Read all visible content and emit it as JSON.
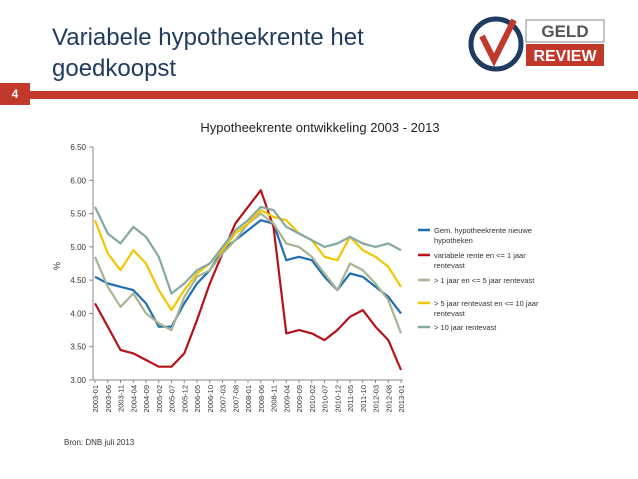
{
  "slide": {
    "title": "Variabele hypotheekrente het goedkoopst",
    "number": "4",
    "source": "Bron: DNB juli 2013"
  },
  "logo": {
    "text_top": "GELD",
    "text_bottom": "REVIEW"
  },
  "colors": {
    "accent": "#c0392b",
    "title": "#1f3b5f"
  },
  "chart_data": {
    "type": "line",
    "title": "Hypotheekrente ontwikkeling 2003 - 2013",
    "ylabel": "%",
    "ylim": [
      3.0,
      6.5
    ],
    "yticks": [
      "3.00",
      "3.50",
      "4.00",
      "4.50",
      "5.00",
      "5.50",
      "6.00",
      "6.50"
    ],
    "grid": false,
    "legend_position": "right",
    "x": [
      "2003-01",
      "2003-06",
      "2003-11",
      "2004-04",
      "2004-09",
      "2005-02",
      "2005-07",
      "2005-12",
      "2006-05",
      "2006-10",
      "2007-03",
      "2007-08",
      "2008-01",
      "2008-06",
      "2008-11",
      "2009-04",
      "2009-09",
      "2010-02",
      "2010-07",
      "2010-12",
      "2011-05",
      "2011-10",
      "2012-03",
      "2012-08",
      "2013-01"
    ],
    "series": [
      {
        "name": "Gem. hypotheekrente nieuwe hypotheken",
        "color": "#1f6fb2",
        "values": [
          4.55,
          4.45,
          4.4,
          4.35,
          4.15,
          3.8,
          3.8,
          4.15,
          4.45,
          4.65,
          4.95,
          5.1,
          5.25,
          5.4,
          5.35,
          4.8,
          4.85,
          4.8,
          4.55,
          4.35,
          4.6,
          4.55,
          4.4,
          4.25,
          4.0
        ]
      },
      {
        "name": "variabele rente en <= 1 jaar rentevast",
        "color": "#b5121b",
        "values": [
          4.15,
          3.8,
          3.45,
          3.4,
          3.3,
          3.2,
          3.2,
          3.4,
          3.9,
          4.45,
          4.9,
          5.35,
          5.6,
          5.85,
          5.3,
          3.7,
          3.75,
          3.7,
          3.6,
          3.75,
          3.95,
          4.05,
          3.8,
          3.6,
          3.15
        ]
      },
      {
        "name": "> 1 jaar en <= 5 jaar rentevast",
        "color": "#a5b592",
        "values": [
          4.85,
          4.4,
          4.1,
          4.3,
          4.0,
          3.85,
          3.75,
          4.25,
          4.55,
          4.65,
          4.9,
          5.1,
          5.35,
          5.5,
          5.35,
          5.05,
          5.0,
          4.85,
          4.6,
          4.35,
          4.75,
          4.65,
          4.45,
          4.2,
          3.7
        ]
      },
      {
        "name": "> 5 jaar rentevast en <= 10 jaar rentevast",
        "color": "#f2c500",
        "values": [
          5.4,
          4.9,
          4.65,
          4.95,
          4.75,
          4.35,
          4.05,
          4.35,
          4.6,
          4.75,
          4.95,
          5.2,
          5.35,
          5.55,
          5.45,
          5.4,
          5.2,
          5.1,
          4.85,
          4.8,
          5.15,
          4.95,
          4.85,
          4.7,
          4.4
        ]
      },
      {
        "name": "> 10 jaar rentevast",
        "color": "#84a8a3",
        "values": [
          5.6,
          5.2,
          5.05,
          5.3,
          5.15,
          4.85,
          4.3,
          4.45,
          4.65,
          4.75,
          5.0,
          5.25,
          5.4,
          5.6,
          5.55,
          5.3,
          5.2,
          5.1,
          5.0,
          5.05,
          5.15,
          5.05,
          5.0,
          5.05,
          4.95
        ]
      }
    ]
  }
}
